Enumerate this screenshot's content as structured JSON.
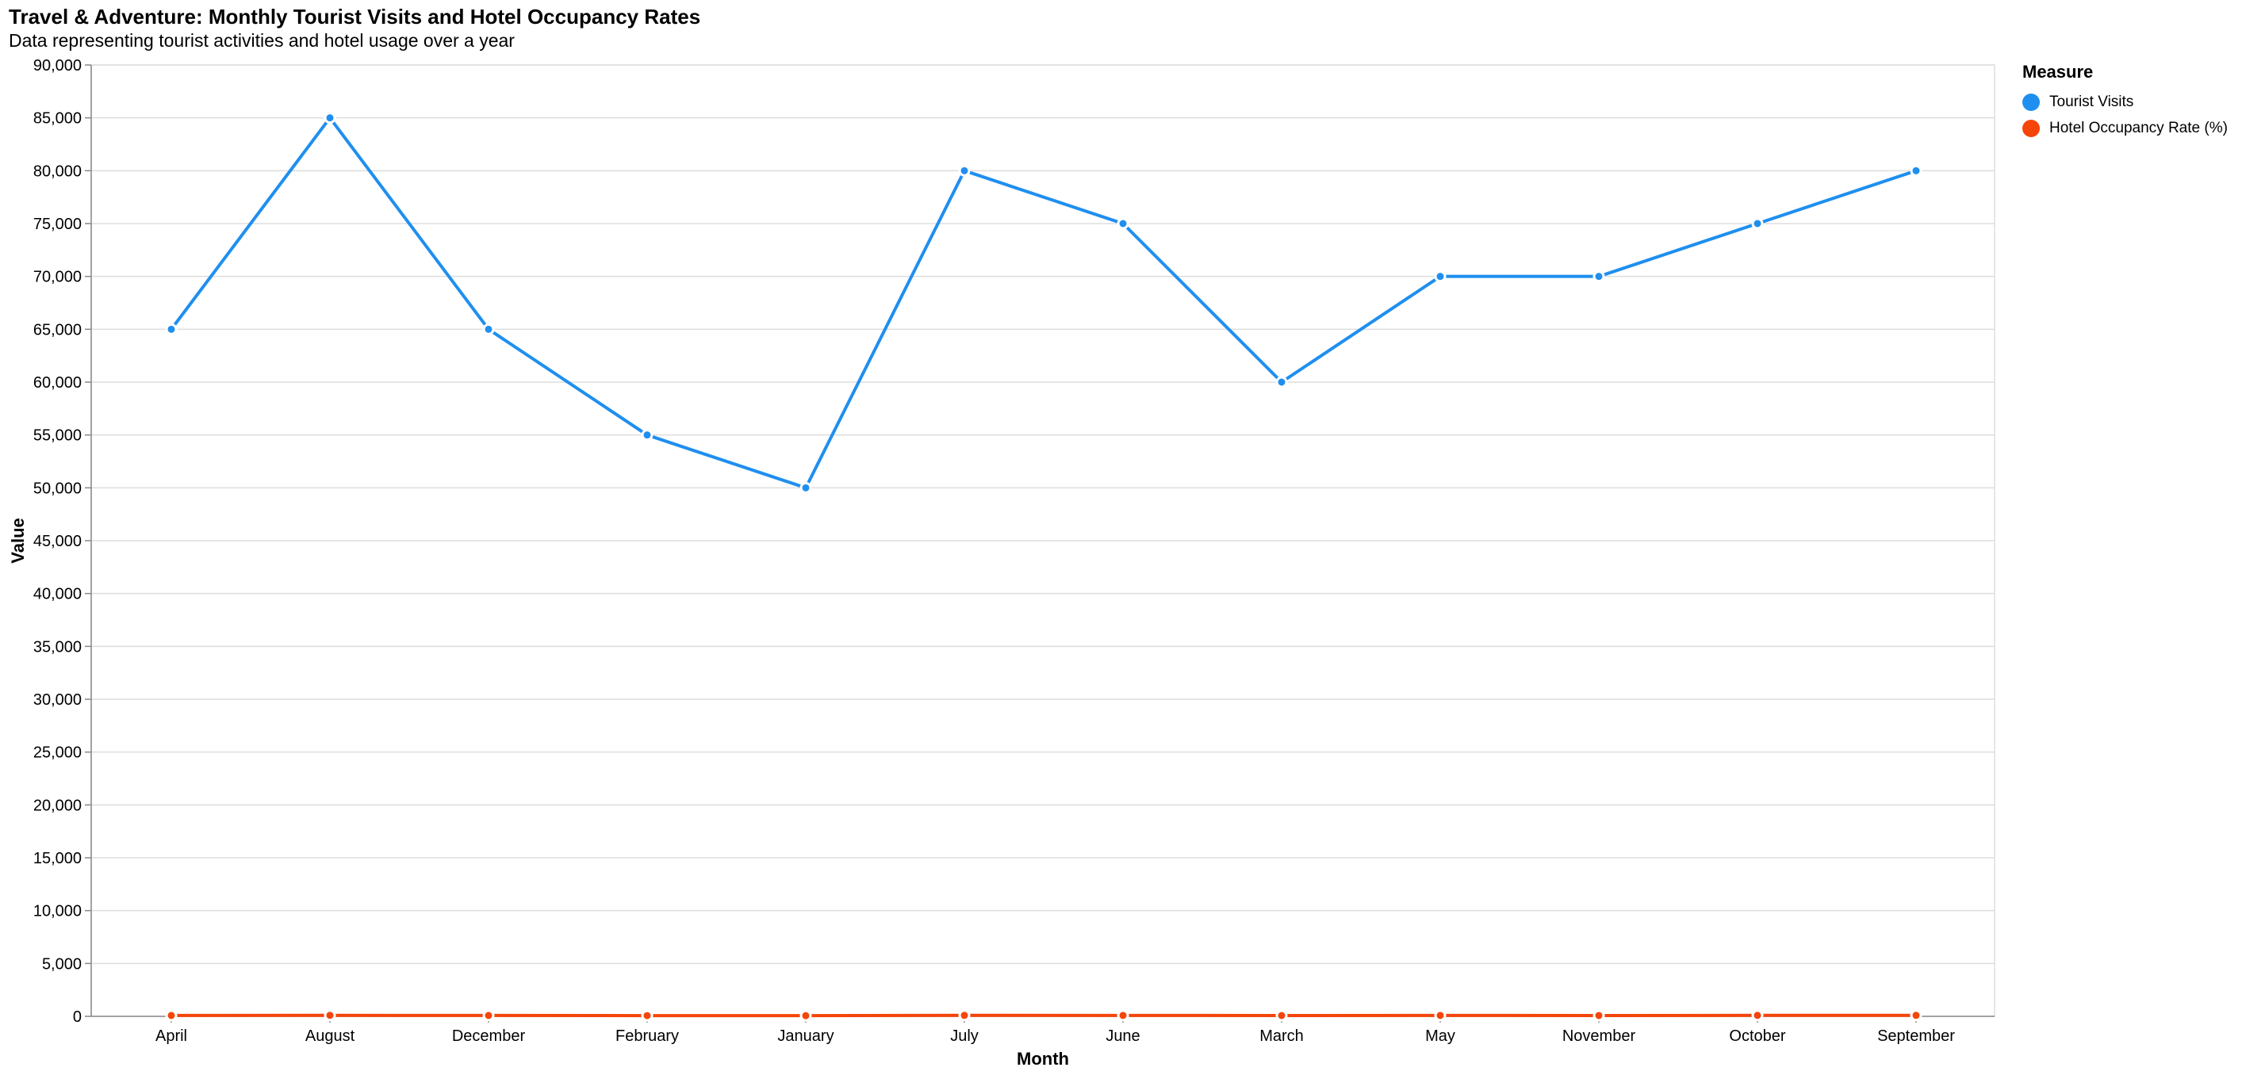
{
  "chart_data": {
    "type": "line",
    "title": "Travel & Adventure: Monthly Tourist Visits and Hotel Occupancy Rates",
    "subtitle": "Data representing tourist activities and hotel usage over a year",
    "xlabel": "Month",
    "ylabel": "Value",
    "categories": [
      "April",
      "August",
      "December",
      "February",
      "January",
      "July",
      "June",
      "March",
      "May",
      "November",
      "October",
      "September"
    ],
    "ylim": [
      0,
      90000
    ],
    "ytick_step": 5000,
    "yticks": [
      "0",
      "5,000",
      "10,000",
      "15,000",
      "20,000",
      "25,000",
      "30,000",
      "35,000",
      "40,000",
      "45,000",
      "50,000",
      "55,000",
      "60,000",
      "65,000",
      "70,000",
      "75,000",
      "80,000",
      "85,000",
      "90,000"
    ],
    "grid": true,
    "legend": {
      "title": "Measure",
      "placement": "top-right-outside"
    },
    "series": [
      {
        "name": "Tourist Visits",
        "color": "#1f8fef",
        "values": [
          65000,
          85000,
          65000,
          55000,
          50000,
          80000,
          75000,
          60000,
          70000,
          70000,
          75000,
          80000
        ]
      },
      {
        "name": "Hotel Occupancy Rate (%)",
        "color": "#f5450a",
        "values": [
          80,
          95,
          82,
          70,
          65,
          92,
          88,
          75,
          85,
          78,
          90,
          93
        ]
      }
    ]
  }
}
